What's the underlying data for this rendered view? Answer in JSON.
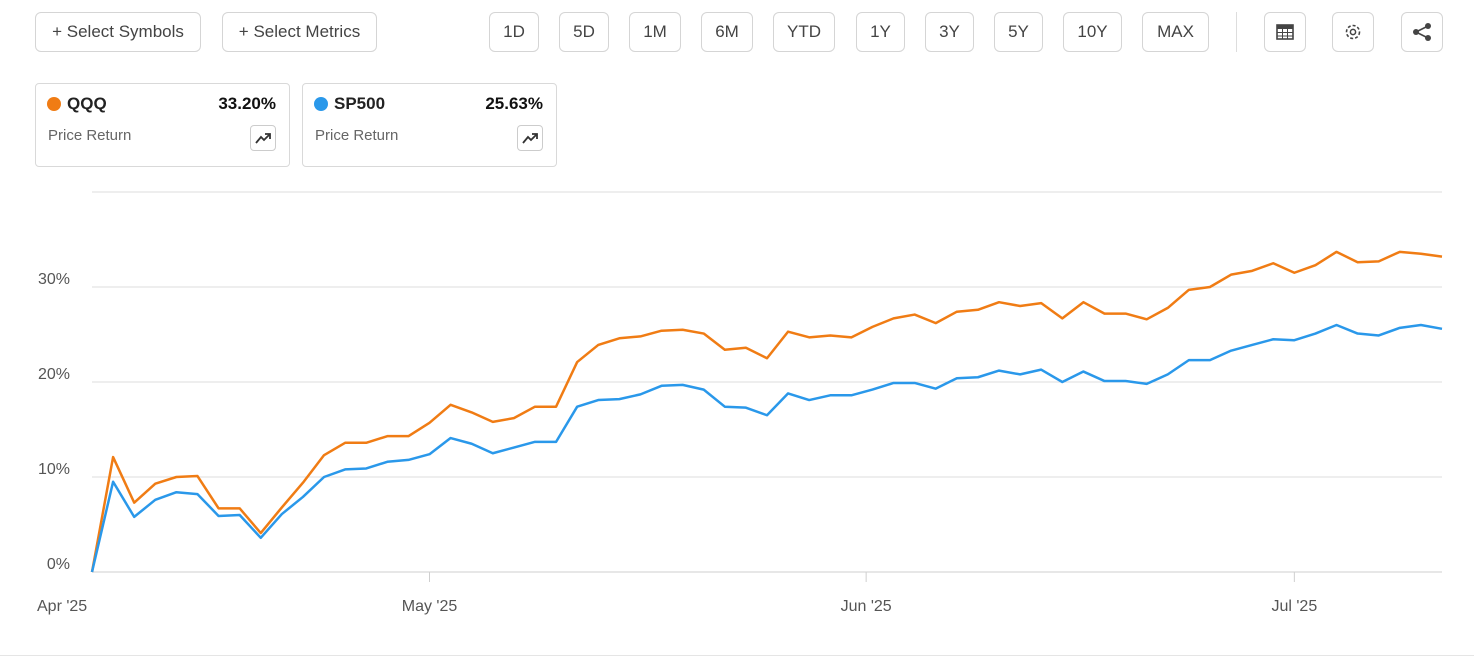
{
  "toolbar": {
    "symbols_button": "+ Select Symbols",
    "metrics_button": "+ Select Metrics",
    "periods": [
      "1D",
      "5D",
      "1M",
      "6M",
      "YTD",
      "1Y",
      "3Y",
      "5Y",
      "10Y",
      "MAX"
    ]
  },
  "cards": [
    {
      "symbol": "QQQ",
      "value": "33.20%",
      "metric": "Price Return"
    },
    {
      "symbol": "SP500",
      "value": "25.63%",
      "metric": "Price Return"
    }
  ],
  "chart_data": {
    "type": "line",
    "xlim": [
      0,
      64
    ],
    "xticks": [
      {
        "value": 0,
        "label": "Apr '25"
      },
      {
        "value": 16,
        "label": "May '25"
      },
      {
        "value": 36.7,
        "label": "Jun '25"
      },
      {
        "value": 57,
        "label": "Jul '25"
      }
    ],
    "ylim": [
      0,
      40
    ],
    "yticks": [
      {
        "value": 0,
        "label": "0%"
      },
      {
        "value": 10,
        "label": "10%"
      },
      {
        "value": 20,
        "label": "20%"
      },
      {
        "value": 30,
        "label": "30%"
      }
    ],
    "grid": true,
    "series": [
      {
        "name": "QQQ",
        "color": "#f07c14",
        "values": [
          0,
          12.1,
          7.3,
          9.3,
          10.0,
          10.1,
          6.7,
          6.7,
          4.1,
          6.8,
          9.4,
          12.3,
          13.6,
          13.6,
          14.3,
          14.3,
          15.7,
          17.6,
          16.8,
          15.8,
          16.2,
          17.4,
          17.4,
          22.1,
          23.9,
          24.6,
          24.8,
          25.4,
          25.5,
          25.1,
          23.4,
          23.6,
          22.5,
          25.3,
          24.7,
          24.9,
          24.7,
          25.8,
          26.7,
          27.1,
          26.2,
          27.4,
          27.6,
          28.4,
          28.0,
          28.3,
          26.7,
          28.4,
          27.2,
          27.2,
          26.6,
          27.8,
          29.7,
          30.0,
          31.3,
          31.7,
          32.5,
          31.5,
          32.3,
          33.7,
          32.6,
          32.7,
          33.7,
          33.5,
          33.2
        ]
      },
      {
        "name": "SP500",
        "color": "#2a98ea",
        "values": [
          0,
          9.5,
          5.8,
          7.6,
          8.4,
          8.2,
          5.9,
          6.0,
          3.6,
          6.1,
          7.9,
          10.0,
          10.8,
          10.9,
          11.6,
          11.8,
          12.4,
          14.1,
          13.5,
          12.5,
          13.1,
          13.7,
          13.7,
          17.4,
          18.1,
          18.2,
          18.7,
          19.6,
          19.7,
          19.2,
          17.4,
          17.3,
          16.5,
          18.8,
          18.1,
          18.6,
          18.6,
          19.2,
          19.9,
          19.9,
          19.3,
          20.4,
          20.5,
          21.2,
          20.8,
          21.3,
          20.0,
          21.1,
          20.1,
          20.1,
          19.8,
          20.8,
          22.3,
          22.3,
          23.3,
          23.9,
          24.5,
          24.4,
          25.1,
          26.0,
          25.1,
          24.9,
          25.7,
          26.0,
          25.6
        ]
      }
    ]
  }
}
